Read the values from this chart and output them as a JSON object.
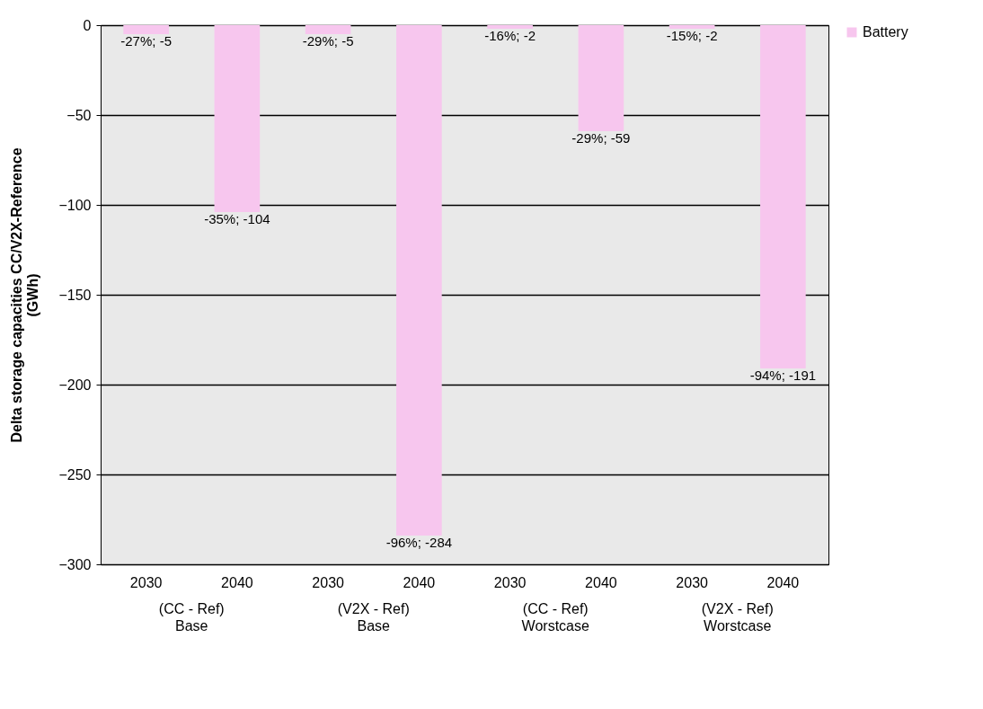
{
  "chart_data": {
    "type": "bar",
    "ylabel": "Delta storage capacities CC/V2X-Reference\n(GWh)",
    "categories": [
      "2030",
      "2040",
      "2030",
      "2040",
      "2030",
      "2040",
      "2030",
      "2040"
    ],
    "series": [
      {
        "name": "Battery",
        "color": "#f7c6ee",
        "values": [
          -5,
          -104,
          -5,
          -284,
          -2,
          -59,
          -2,
          -191
        ],
        "value_labels": [
          "-27%; -5",
          "-35%; -104",
          "-29%; -5",
          "-96%; -284",
          "-16%; -2",
          "-29%; -59",
          "-15%; -2",
          "-94%; -191"
        ]
      }
    ],
    "annotations": [
      "(CC - Ref)\nBase",
      "(V2X - Ref)\nBase",
      "(CC - Ref)\nWorstcase",
      "(V2X - Ref)\nWorstcase"
    ],
    "ylim": [
      -300,
      0
    ],
    "yticks": [
      0,
      -50,
      -100,
      -150,
      -200,
      -250,
      -300
    ],
    "grid": "y",
    "legend": "right"
  }
}
